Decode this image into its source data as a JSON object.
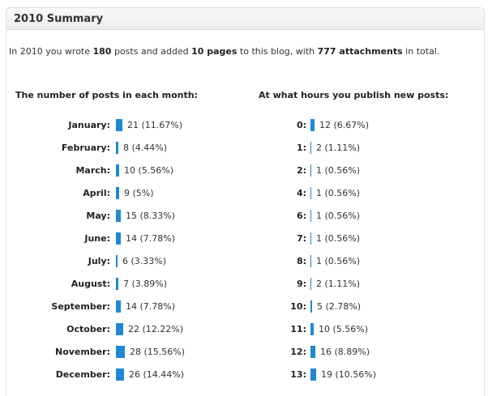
{
  "header": {
    "title": "2010 Summary"
  },
  "summary": {
    "p1": "In 2010 you wrote ",
    "posts": "180",
    "p2": " posts and added ",
    "pages": "10 pages",
    "p3": " to this blog, with ",
    "attachments": "777 attachments",
    "p4": " in total."
  },
  "months": {
    "title": "The number of posts in each month:",
    "rows": [
      {
        "label": "January:",
        "value": "21 (11.67%)",
        "count": 21
      },
      {
        "label": "February:",
        "value": "8 (4.44%)",
        "count": 8
      },
      {
        "label": "March:",
        "value": "10 (5.56%)",
        "count": 10
      },
      {
        "label": "April:",
        "value": "9 (5%)",
        "count": 9
      },
      {
        "label": "May:",
        "value": "15 (8.33%)",
        "count": 15
      },
      {
        "label": "June:",
        "value": "14 (7.78%)",
        "count": 14
      },
      {
        "label": "July:",
        "value": "6 (3.33%)",
        "count": 6
      },
      {
        "label": "August:",
        "value": "7 (3.89%)",
        "count": 7
      },
      {
        "label": "September:",
        "value": "14 (7.78%)",
        "count": 14
      },
      {
        "label": "October:",
        "value": "22 (12.22%)",
        "count": 22
      },
      {
        "label": "November:",
        "value": "28 (15.56%)",
        "count": 28
      },
      {
        "label": "December:",
        "value": "26 (14.44%)",
        "count": 26
      }
    ]
  },
  "hours": {
    "title": "At what hours you publish new posts:",
    "rows": [
      {
        "label": "0:",
        "value": "12 (6.67%)",
        "count": 12
      },
      {
        "label": "1:",
        "value": "2 (1.11%)",
        "count": 2
      },
      {
        "label": "2:",
        "value": "1 (0.56%)",
        "count": 1
      },
      {
        "label": "4:",
        "value": "1 (0.56%)",
        "count": 1
      },
      {
        "label": "6:",
        "value": "1 (0.56%)",
        "count": 1
      },
      {
        "label": "7:",
        "value": "1 (0.56%)",
        "count": 1
      },
      {
        "label": "8:",
        "value": "1 (0.56%)",
        "count": 1
      },
      {
        "label": "9:",
        "value": "2 (1.11%)",
        "count": 2
      },
      {
        "label": "10:",
        "value": "5 (2.78%)",
        "count": 5
      },
      {
        "label": "11:",
        "value": "10 (5.56%)",
        "count": 10
      },
      {
        "label": "12:",
        "value": "16 (8.89%)",
        "count": 16
      },
      {
        "label": "13:",
        "value": "19 (10.56%)",
        "count": 19
      }
    ]
  },
  "colors": {
    "bar": "#1e88d4"
  }
}
